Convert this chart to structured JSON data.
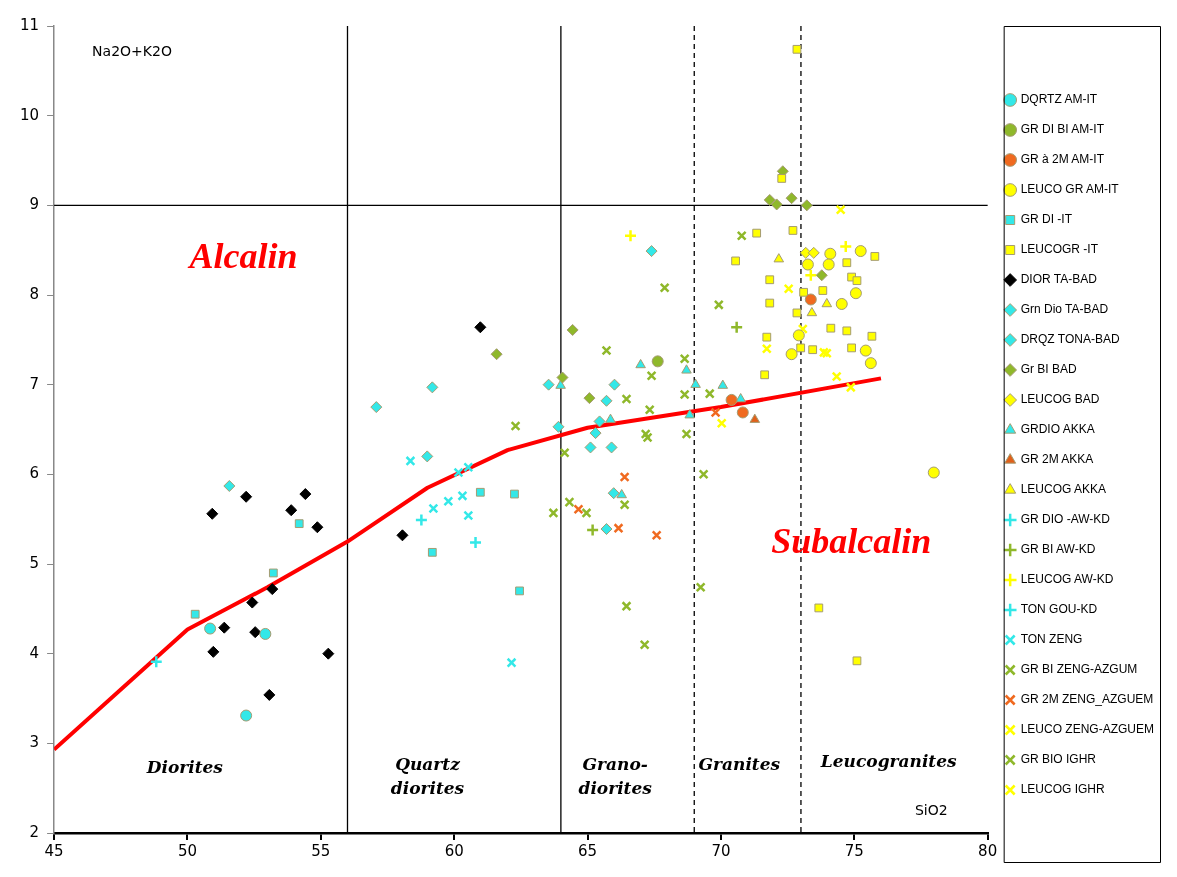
{
  "chart_data": {
    "type": "scatter",
    "xlabel": "SiO2",
    "ylabel": "Na2O+K2O",
    "xlim": [
      45,
      80
    ],
    "ylim": [
      2,
      11
    ],
    "xticks": [
      45,
      50,
      55,
      60,
      65,
      70,
      75,
      80
    ],
    "yticks": [
      2,
      3,
      4,
      5,
      6,
      7,
      8,
      9,
      10,
      11
    ],
    "grid": false,
    "legend": "right",
    "series": [
      {
        "name": "DQRTZ AM-IT",
        "color": "#33e8e8",
        "marker": "circle",
        "x": [
          50.85,
          52.92,
          52.2
        ],
        "values": [
          4.28,
          4.22,
          3.31
        ]
      },
      {
        "name": "GR DI BI AM-IT",
        "color": "#8fb82b",
        "marker": "circle",
        "x": [
          67.63
        ],
        "values": [
          7.26
        ]
      },
      {
        "name": "GR à 2M AM-IT",
        "color": "#f06a20",
        "marker": "circle",
        "x": [
          70.4,
          70.82,
          73.37
        ],
        "values": [
          6.83,
          6.69,
          7.95
        ]
      },
      {
        "name": "LEUCO GR AM-IT",
        "color": "#ffff00",
        "marker": "circle",
        "x": [
          74.1,
          75.24,
          73.26,
          74.04,
          75.06,
          74.53,
          72.92,
          72.65,
          75.43,
          75.62,
          77.98
        ],
        "values": [
          8.46,
          8.49,
          8.34,
          8.34,
          8.02,
          7.9,
          7.55,
          7.34,
          7.38,
          7.24,
          6.02
        ]
      },
      {
        "name": "GR DI -IT",
        "color": "#33e8e8",
        "marker": "square",
        "x": [
          50.29,
          53.22,
          54.19,
          60.98,
          59.18,
          62.26,
          62.45
        ],
        "values": [
          4.44,
          4.9,
          5.45,
          5.8,
          5.13,
          5.78,
          4.7
        ]
      },
      {
        "name": "LEUCOGR -IT",
        "color": "#ffff00",
        "marker": "square",
        "x": [
          72.85,
          72.28,
          72.7,
          71.34,
          70.55,
          71.83,
          71.83,
          71.72,
          71.64,
          73.1,
          73.82,
          72.85,
          74.72,
          75.77,
          74.9,
          75.1,
          74.12,
          74.72,
          75.66,
          72.99,
          73.44,
          74.9,
          73.67,
          75.1
        ],
        "values": [
          10.74,
          9.3,
          8.72,
          8.69,
          8.38,
          8.17,
          7.91,
          7.53,
          7.11,
          8.03,
          8.05,
          7.8,
          8.36,
          8.43,
          8.2,
          8.16,
          7.63,
          7.6,
          7.54,
          7.41,
          7.39,
          7.41,
          4.51,
          3.92
        ]
      },
      {
        "name": "DIOR TA-BAD",
        "color": "#000000",
        "marker": "diamond",
        "x": [
          50.93,
          52.2,
          53.89,
          54.42,
          54.87,
          52.43,
          53.18,
          51.38,
          52.54,
          50.97,
          53.07,
          55.28,
          58.06,
          60.98
        ],
        "values": [
          5.56,
          5.75,
          5.6,
          5.78,
          5.41,
          4.57,
          4.72,
          4.29,
          4.24,
          4.02,
          3.54,
          4.0,
          5.32,
          7.64
        ]
      },
      {
        "name": "Grn Dio TA-BAD",
        "color": "#33e8e8",
        "marker": "diamond",
        "x": [
          51.57,
          57.08,
          59.18,
          65.71,
          65.98
        ],
        "values": [
          5.87,
          6.75,
          6.97,
          5.39,
          5.79
        ]
      },
      {
        "name": "DRQZ TONA-BAD",
        "color": "#33e8e8",
        "marker": "diamond",
        "x": [
          58.99,
          67.4,
          63.54,
          63.91,
          66.01,
          65.71,
          65.45,
          65.3,
          65.11,
          65.9
        ],
        "values": [
          6.2,
          8.49,
          7.0,
          6.53,
          7.0,
          6.82,
          6.59,
          6.46,
          6.3,
          6.3
        ]
      },
      {
        "name": "Gr BI BAD",
        "color": "#8fb82b",
        "marker": "diamond",
        "x": [
          61.59,
          64.44,
          64.06,
          65.07,
          72.32,
          71.83,
          72.09,
          72.65,
          73.22,
          73.78
        ],
        "values": [
          7.34,
          7.61,
          7.08,
          6.85,
          9.38,
          9.06,
          9.01,
          9.08,
          9.0,
          8.22
        ]
      },
      {
        "name": "LEUCOG BAD",
        "color": "#ffff00",
        "marker": "diamond",
        "x": [
          73.18,
          73.48
        ],
        "values": [
          8.47,
          8.47
        ]
      },
      {
        "name": "GRDIO AKKA",
        "color": "#33e8e8",
        "marker": "triangle",
        "x": [
          66.99,
          68.71,
          69.05,
          70.07,
          70.74,
          63.99,
          65.86,
          66.28,
          68.83
        ],
        "values": [
          7.22,
          7.16,
          7.0,
          6.99,
          6.84,
          6.99,
          6.61,
          5.77,
          6.66
        ]
      },
      {
        "name": "GR 2M AKKA",
        "color": "#e0601a",
        "marker": "triangle",
        "x": [
          71.27
        ],
        "values": [
          6.61
        ]
      },
      {
        "name": "LEUCOG AKKA",
        "color": "#ffff00",
        "marker": "triangle",
        "x": [
          72.17,
          73.97,
          73.41
        ],
        "values": [
          8.4,
          7.9,
          7.8
        ]
      },
      {
        "name": "GR DIO -AW-KD",
        "color": "#33e8e8",
        "marker": "plus",
        "x": [
          48.83
        ],
        "values": [
          3.91
        ]
      },
      {
        "name": "GR BI AW-KD",
        "color": "#8fb82b",
        "marker": "plus",
        "x": [
          70.59,
          65.19
        ],
        "values": [
          7.64,
          5.38
        ]
      },
      {
        "name": "LEUCOG AW-KD",
        "color": "#ffff00",
        "marker": "plus",
        "x": [
          66.61,
          74.68,
          73.37
        ],
        "values": [
          8.66,
          8.54,
          8.22
        ]
      },
      {
        "name": "TON GOU-KD",
        "color": "#33e8e8",
        "marker": "plus",
        "x": [
          58.77,
          60.8
        ],
        "values": [
          5.49,
          5.24
        ]
      },
      {
        "name": "TON ZENG",
        "color": "#33e8e8",
        "marker": "cross",
        "x": [
          58.36,
          60.16,
          60.53,
          59.22,
          59.78,
          60.31,
          60.53,
          62.15
        ],
        "values": [
          6.15,
          6.02,
          6.08,
          5.62,
          5.7,
          5.76,
          5.54,
          3.9
        ]
      },
      {
        "name": "GR BI ZENG-AZGUM",
        "color": "#8fb82b",
        "marker": "cross",
        "x": [
          62.3,
          64.14,
          63.72,
          64.32,
          64.96,
          66.39
        ],
        "values": [
          6.54,
          6.24,
          5.57,
          5.69,
          5.57,
          5.66
        ]
      },
      {
        "name": "GR 2M ZENG_AZGUEM",
        "color": "#f06a20",
        "marker": "cross",
        "x": [
          66.39,
          64.66,
          66.16,
          67.59,
          69.8
        ],
        "values": [
          5.97,
          5.61,
          5.4,
          5.32,
          6.69
        ]
      },
      {
        "name": "LEUCO ZENG-AZGUEM",
        "color": "#ffff00",
        "marker": "cross",
        "x": [
          74.49,
          71.72,
          73.86,
          73.97,
          74.34
        ],
        "values": [
          8.95,
          7.4,
          7.36,
          7.35,
          7.09
        ]
      },
      {
        "name": "GR BIO IGHR",
        "color": "#8fb82b",
        "marker": "cross",
        "x": [
          65.71,
          67.89,
          69.92,
          70.78,
          67.4,
          68.64,
          68.64,
          69.58,
          66.46,
          67.33,
          67.18,
          67.25,
          68.71,
          69.35,
          69.24,
          66.46,
          67.14
        ],
        "values": [
          7.38,
          8.08,
          7.89,
          8.66,
          7.1,
          7.29,
          6.89,
          6.9,
          6.84,
          6.72,
          6.45,
          6.41,
          6.45,
          6.0,
          4.74,
          4.53,
          4.1
        ]
      },
      {
        "name": "LEUCOG IGHR",
        "color": "#ffff00",
        "marker": "cross",
        "x": [
          70.03,
          73.07,
          72.54,
          74.87
        ],
        "values": [
          6.57,
          7.62,
          8.07,
          6.97
        ]
      },
      {
        "type": "line",
        "color": "#ff0000",
        "marker": "none",
        "x": [
          45,
          50,
          53,
          56,
          59,
          62,
          65,
          70,
          76
        ],
        "values": [
          2.93,
          4.27,
          4.74,
          5.25,
          5.85,
          6.27,
          6.52,
          6.75,
          7.07
        ]
      }
    ],
    "ref_lines": [
      {
        "axis": "y",
        "value": 9,
        "line_style": "solid"
      },
      {
        "axis": "x",
        "value": 56,
        "line_style": "solid"
      },
      {
        "axis": "x",
        "value": 64,
        "line_style": "solid"
      },
      {
        "axis": "x",
        "value": 69,
        "line_style": "dashed"
      },
      {
        "axis": "x",
        "value": 73,
        "line_style": "dashed"
      }
    ],
    "annotations": [
      "Alcalin",
      "Subalcalin",
      "Diorites",
      "Quartz diorites",
      "Grano-diorites",
      "Granites",
      "Leucogranites"
    ]
  }
}
